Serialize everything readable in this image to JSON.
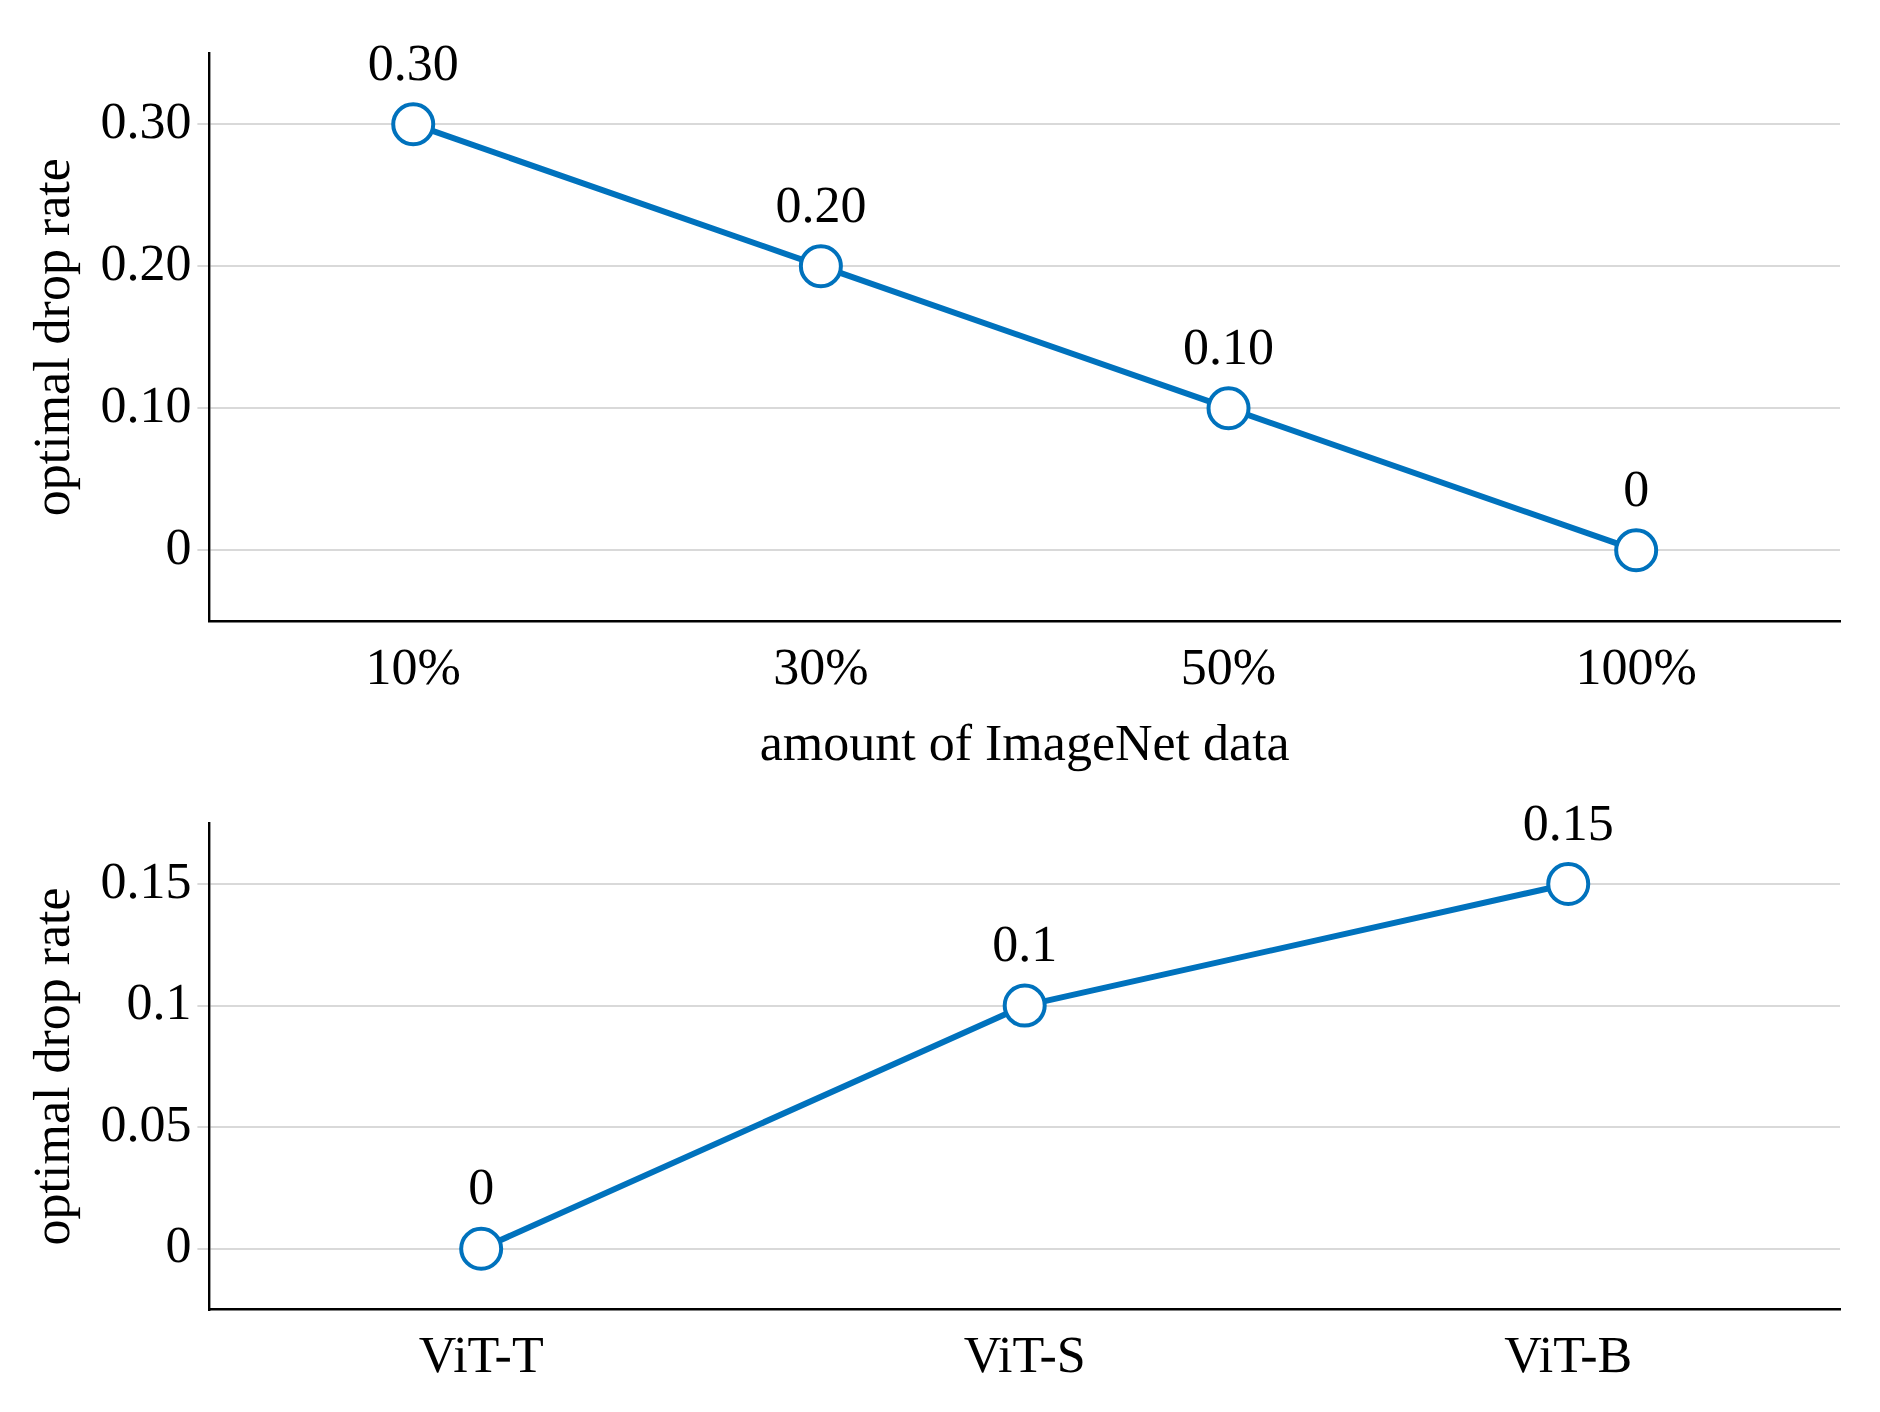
{
  "chart_data": [
    {
      "type": "line",
      "xlabel": "amount of ImageNet data",
      "ylabel": "optimal drop rate",
      "categories": [
        "10%",
        "30%",
        "50%",
        "100%"
      ],
      "series": [
        {
          "color": "#0072bd",
          "values": [
            0.3,
            0.2,
            0.1,
            0
          ],
          "value_labels": [
            "0.30",
            "0.20",
            "0.10",
            "0"
          ]
        }
      ],
      "ylim": [
        -0.05,
        0.35
      ],
      "yticks": [
        {
          "value": 0,
          "label": "0"
        },
        {
          "value": 0.1,
          "label": "0.10"
        },
        {
          "value": 0.2,
          "label": "0.20"
        },
        {
          "value": 0.3,
          "label": "0.30"
        }
      ],
      "grid": "y",
      "legend": false,
      "marker": "circle",
      "line_style": "solid"
    },
    {
      "type": "line",
      "ylabel": "optimal drop rate",
      "categories": [
        "ViT-T",
        "ViT-S",
        "ViT-B"
      ],
      "series": [
        {
          "color": "#0072bd",
          "values": [
            0,
            0.1,
            0.15
          ],
          "value_labels": [
            "0",
            "0.1",
            "0.15"
          ]
        }
      ],
      "ylim": [
        -0.025,
        0.175
      ],
      "yticks": [
        0,
        0.05,
        0.1,
        0.15
      ],
      "grid": "y",
      "legend": false,
      "marker": "circle",
      "line_style": "solid"
    }
  ]
}
